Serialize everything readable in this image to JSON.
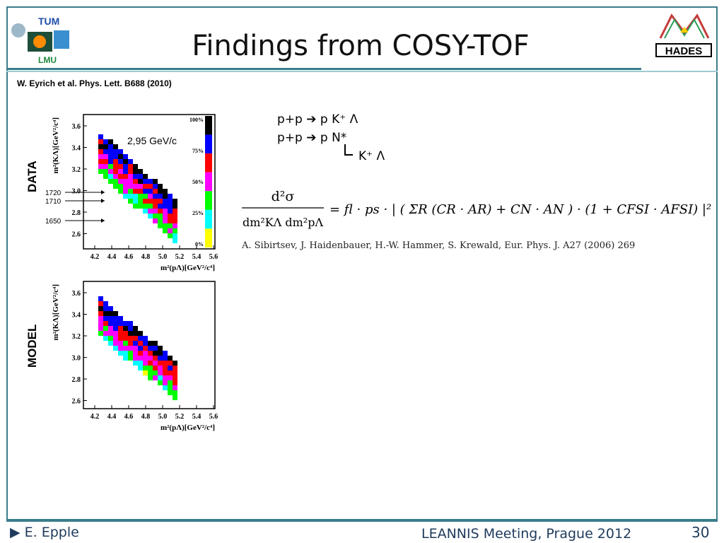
{
  "slide": {
    "title": "Findings from COSY-TOF",
    "reference": "W. Eyrich et al. Phys. Lett. B688 (2010)",
    "left_logo_texts": [
      "TUM",
      "LMU"
    ],
    "right_logo_text": "HADES"
  },
  "reactions": {
    "line1": "p+p ➔ p K⁺ Λ",
    "line2": "p+p ➔ p N*",
    "line3": "K⁺ Λ"
  },
  "formula": {
    "lhs_num": "d²σ",
    "lhs_den": "dm²KΛ dm²pΛ",
    "rhs": "= fl · ps · | ( ΣR (CR · AR) + CN · AN ) · (1 + CFSI · AFSI) |²",
    "citation": "A. Sibirtsev, J. Haidenbauer, H.-W. Hammer, S. Krewald, Eur. Phys. J. A27 (2006) 269"
  },
  "plots": {
    "data": {
      "side_label": "DATA",
      "energy_label": "2,95 GeV/c",
      "ylabel": "m²(KΛ)[GeV²/c⁴]",
      "xlabel": "m²(pΛ)[GeV²/c⁴]",
      "x_ticks": [
        "4.2",
        "4.4",
        "4.6",
        "4.8",
        "5.0",
        "5.2",
        "5.4",
        "5.6"
      ],
      "y_ticks": [
        "3.6",
        "3.4",
        "3.2",
        "3.0",
        "2.8",
        "2.6"
      ],
      "arrow_labels": [
        "1720",
        "1710",
        "1650"
      ],
      "colorbar_labels": [
        "100%",
        "75%",
        "50%",
        "25%",
        "0%"
      ]
    },
    "model": {
      "side_label": "MODEL",
      "ylabel": "m²(KΛ)[GeV²/c⁴]",
      "xlabel": "m²(pΛ)[GeV²/c⁴]",
      "x_ticks": [
        "4.2",
        "4.4",
        "4.6",
        "4.8",
        "5.0",
        "5.2",
        "5.4",
        "5.6"
      ],
      "y_ticks": [
        "3.6",
        "3.4",
        "3.2",
        "3.0",
        "2.8",
        "2.6"
      ]
    },
    "colors": [
      "#000000",
      "#0000ff",
      "#ff0000",
      "#ff00ff",
      "#00ff00",
      "#00ffff",
      "#ffff00",
      "#ffffff"
    ]
  },
  "footer": {
    "author": "E. Epple",
    "meeting": "LEANNIS Meeting, Prague 2012",
    "page": "30"
  }
}
